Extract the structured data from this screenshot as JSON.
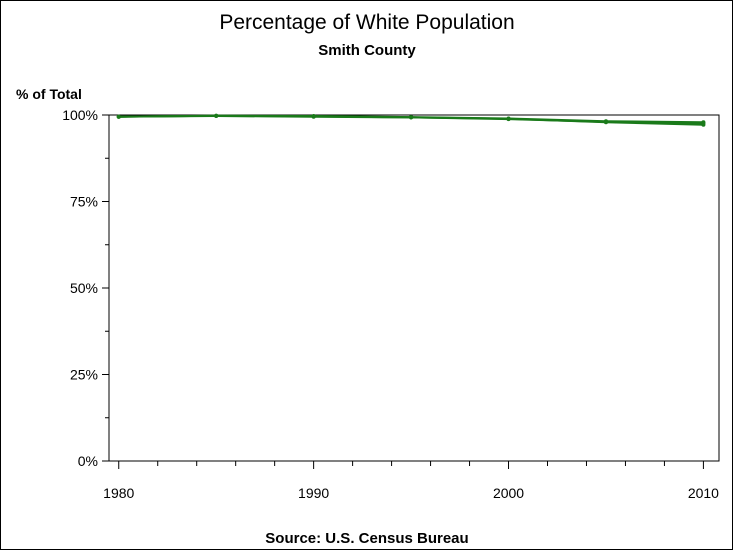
{
  "chart_data": {
    "type": "line",
    "title": "Percentage of White Population",
    "subtitle": "Smith County",
    "ylabel": "% of Total",
    "xlabel": "",
    "source": "Source: U.S. Census Bureau",
    "x": [
      1980,
      1985,
      1990,
      1995,
      2000,
      2005,
      2010
    ],
    "x_ticks": [
      "1980",
      "1990",
      "2000",
      "2010"
    ],
    "x_tick_values": [
      1980,
      1990,
      2000,
      2010
    ],
    "xlim": [
      1979.5,
      2010.8
    ],
    "ylim": [
      0,
      100
    ],
    "y_ticks": [
      "0%",
      "25%",
      "50%",
      "75%",
      "100%"
    ],
    "y_tick_values": [
      0,
      25,
      50,
      75,
      100
    ],
    "grid": false,
    "series_color": "#1a7a1a",
    "series": [
      {
        "values": [
          99.5,
          99.8,
          99.7,
          99.4,
          99.0,
          98.2,
          97.9
        ]
      },
      {
        "values": [
          99.5,
          99.8,
          99.6,
          99.3,
          98.9,
          97.9,
          97.2
        ]
      },
      {
        "values": [
          99.5,
          99.7,
          99.5,
          99.3,
          98.8,
          98.0,
          97.6
        ]
      }
    ]
  }
}
